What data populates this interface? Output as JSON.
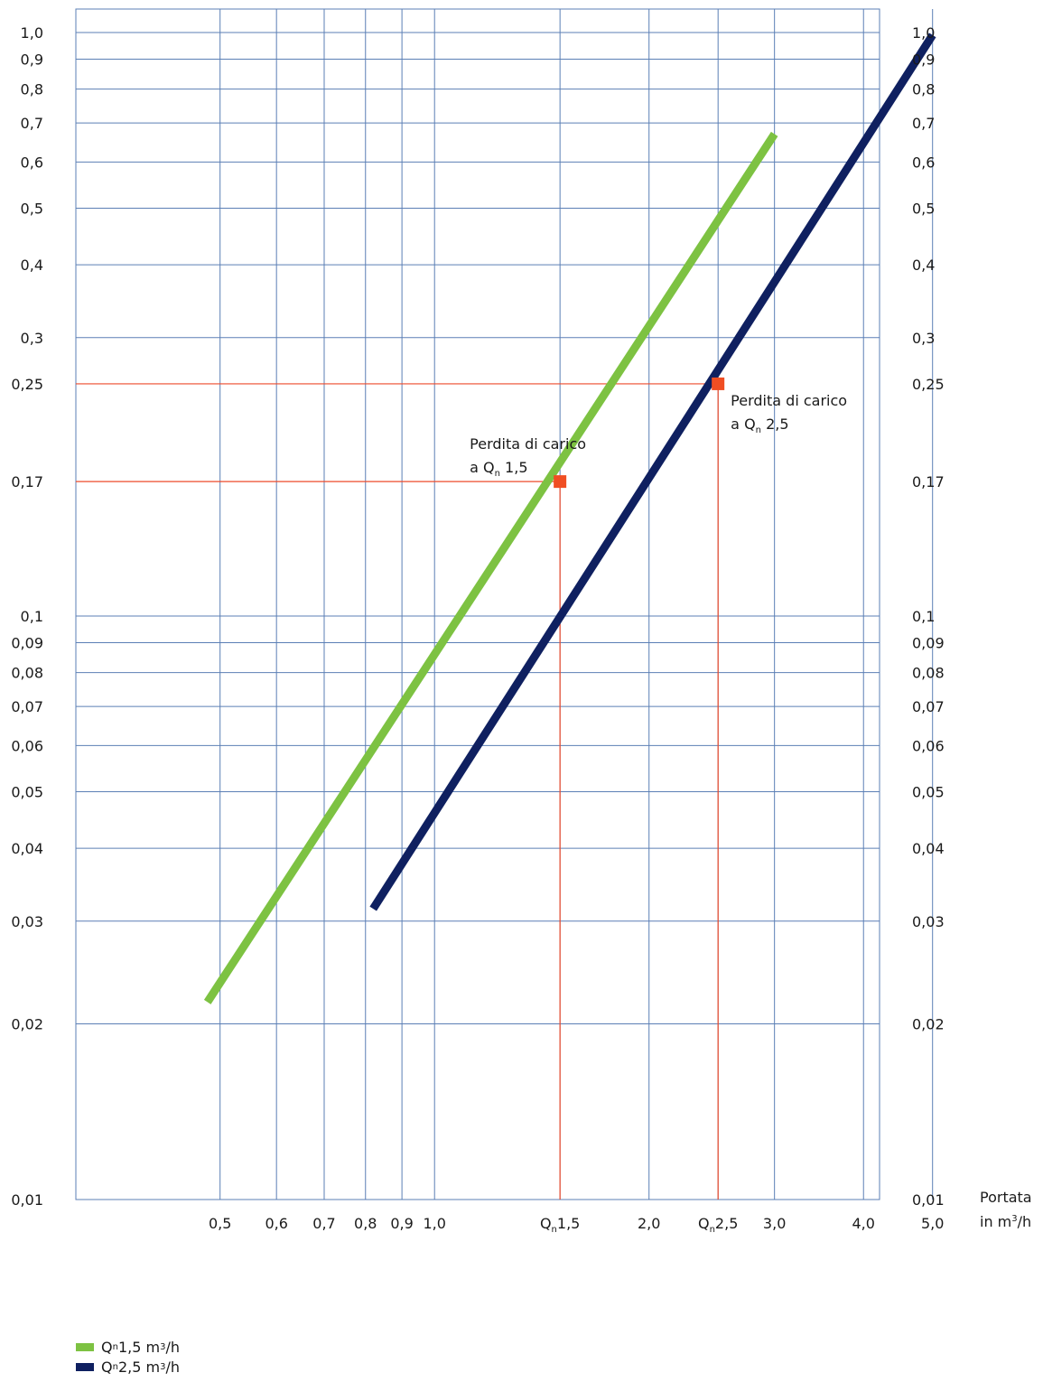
{
  "chart_data": {
    "type": "line",
    "x_scale": "log",
    "y_scale": "log",
    "xlim": [
      0.42,
      5.4
    ],
    "ylim": [
      0.01,
      1.0
    ],
    "x_ticks": [
      {
        "v": 0.5,
        "label": "0,5"
      },
      {
        "v": 0.6,
        "label": "0,6"
      },
      {
        "v": 0.7,
        "label": "0,7"
      },
      {
        "v": 0.8,
        "label": "0,8"
      },
      {
        "v": 0.9,
        "label": "0,9"
      },
      {
        "v": 1.0,
        "label": "1,0"
      },
      {
        "v": 1.5,
        "label": "1,5",
        "q": true
      },
      {
        "v": 2.0,
        "label": "2,0"
      },
      {
        "v": 2.5,
        "label": "2,5",
        "q": true
      },
      {
        "v": 3.0,
        "label": "3,0"
      },
      {
        "v": 4.0,
        "label": "4,0"
      },
      {
        "v": 5.0,
        "label": "5,0"
      }
    ],
    "y_ticks": [
      {
        "v": 1.0,
        "label": "1,0"
      },
      {
        "v": 0.9,
        "label": "0,9"
      },
      {
        "v": 0.8,
        "label": "0,8"
      },
      {
        "v": 0.7,
        "label": "0,7"
      },
      {
        "v": 0.6,
        "label": "0,6"
      },
      {
        "v": 0.5,
        "label": "0,5"
      },
      {
        "v": 0.4,
        "label": "0,4"
      },
      {
        "v": 0.3,
        "label": "0,3"
      },
      {
        "v": 0.25,
        "label": "0,25"
      },
      {
        "v": 0.17,
        "label": "0,17"
      },
      {
        "v": 0.1,
        "label": "0,1"
      },
      {
        "v": 0.09,
        "label": "0,09"
      },
      {
        "v": 0.08,
        "label": "0,08"
      },
      {
        "v": 0.07,
        "label": "0,07"
      },
      {
        "v": 0.06,
        "label": "0,06"
      },
      {
        "v": 0.05,
        "label": "0,05"
      },
      {
        "v": 0.04,
        "label": "0,04"
      },
      {
        "v": 0.03,
        "label": "0,03"
      },
      {
        "v": 0.02,
        "label": "0,02"
      },
      {
        "v": 0.01,
        "label": "0,01"
      }
    ],
    "x_unit_label": {
      "line1": "Portata",
      "line2_prefix": "in m",
      "line2_sup": "3",
      "line2_suffix": "/h"
    },
    "series": [
      {
        "name": "Qn 1,5 m³/h",
        "color": "#7dc242",
        "x": [
          0.48,
          3.0
        ],
        "y": [
          0.0218,
          0.67
        ]
      },
      {
        "name": "Qn 2,5 m³/h",
        "color": "#0f2060",
        "x": [
          0.82,
          5.0
        ],
        "y": [
          0.0315,
          0.99
        ]
      }
    ],
    "markers": [
      {
        "x": 1.5,
        "y": 0.17,
        "color": "#f04e23",
        "label_line1": "Perdita di carico",
        "label_line2_prefix": "a Q",
        "label_line2_sub": "n",
        "label_line2_suffix": " 1,5"
      },
      {
        "x": 2.5,
        "y": 0.25,
        "color": "#f04e23",
        "label_line1": "Perdita di carico",
        "label_line2_prefix": "a Q",
        "label_line2_sub": "n",
        "label_line2_suffix": " 2,5"
      }
    ],
    "grid": true,
    "grid_color": "#5b7fb5",
    "guide_color": "#ee4b2b",
    "legend": {
      "placement": "bottom-left",
      "items": [
        {
          "prefix": "Q",
          "sub": "n",
          "text": " 1,5 m",
          "sup": "3",
          "suffix": "/h",
          "color": "#7dc242"
        },
        {
          "prefix": "Q",
          "sub": "n",
          "text": " 2,5 m",
          "sup": "3",
          "suffix": "/h",
          "color": "#0f2060"
        }
      ]
    }
  }
}
